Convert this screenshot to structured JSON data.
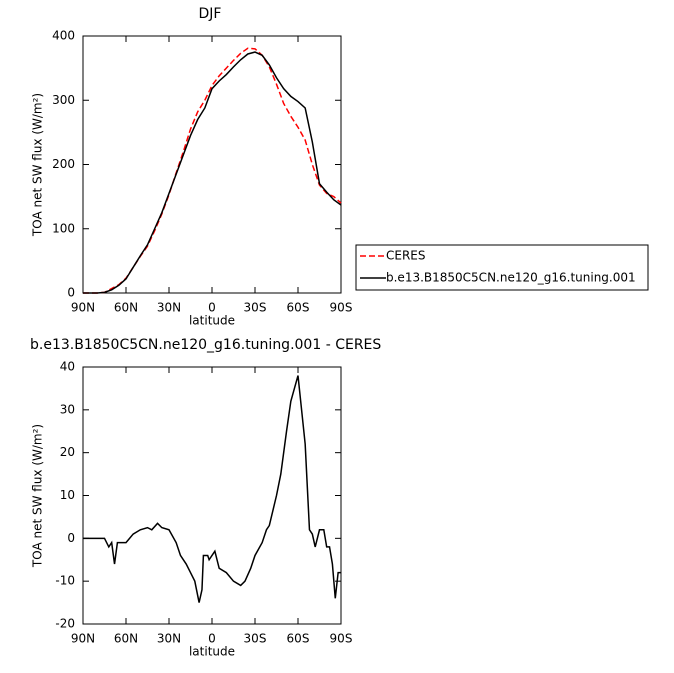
{
  "chart_data": [
    {
      "type": "line",
      "title": "DJF",
      "xlabel": "latitude",
      "ylabel": "TOA net SW flux (W/m²)",
      "x": [
        90,
        85,
        80,
        75,
        70,
        65,
        60,
        55,
        50,
        45,
        40,
        35,
        30,
        25,
        20,
        15,
        10,
        5,
        0,
        -5,
        -10,
        -15,
        -20,
        -25,
        -30,
        -35,
        -40,
        -45,
        -50,
        -55,
        -60,
        -65,
        -70,
        -75,
        -80,
        -85,
        -90
      ],
      "series": [
        {
          "name": "CERES",
          "color": "#ff0000",
          "dash": "dashed",
          "values": [
            0,
            0,
            0,
            1,
            7,
            13,
            23,
            40,
            57,
            73,
            97,
            123,
            153,
            187,
            220,
            255,
            282,
            300,
            323,
            338,
            350,
            362,
            373,
            381,
            380,
            370,
            352,
            325,
            295,
            275,
            258,
            238,
            200,
            168,
            155,
            150,
            140
          ]
        },
        {
          "name": "b.e13.B1850C5CN.ne120_g16.tuning.001",
          "color": "#000000",
          "dash": "solid",
          "values": [
            0,
            0,
            0,
            1,
            5,
            12,
            22,
            40,
            58,
            75,
            100,
            125,
            155,
            185,
            215,
            245,
            270,
            288,
            318,
            330,
            340,
            352,
            363,
            372,
            375,
            370,
            355,
            335,
            318,
            306,
            298,
            288,
            235,
            170,
            157,
            145,
            137
          ]
        }
      ],
      "xlim": [
        90,
        -90
      ],
      "xticks": [
        {
          "value": 90,
          "label": "90N"
        },
        {
          "value": 60,
          "label": "60N"
        },
        {
          "value": 30,
          "label": "30N"
        },
        0,
        {
          "value": -30,
          "label": "30S"
        },
        {
          "value": -60,
          "label": "60S"
        },
        {
          "value": -90,
          "label": "90S"
        }
      ],
      "ylim": [
        0,
        400
      ],
      "yticks": [
        0,
        100,
        200,
        300,
        400
      ],
      "legend": "right"
    },
    {
      "type": "line",
      "title": "b.e13.B1850C5CN.ne120_g16.tuning.001 - CERES",
      "xlabel": "latitude",
      "ylabel": "TOA net SW flux (W/m²)",
      "x": [
        90,
        80,
        75,
        72,
        70,
        68,
        66,
        60,
        55,
        50,
        45,
        42,
        38,
        35,
        30,
        25,
        22,
        18,
        15,
        12,
        9,
        7,
        6,
        3,
        2,
        0,
        -2,
        -5,
        -10,
        -15,
        -20,
        -23,
        -27,
        -30,
        -35,
        -38,
        -40,
        -45,
        -48,
        -52,
        -55,
        -60,
        -65,
        -68,
        -70,
        -72,
        -75,
        -78,
        -80,
        -82,
        -84,
        -86,
        -88,
        -90
      ],
      "series": [
        {
          "name": null,
          "color": "#000000",
          "dash": "solid",
          "values": [
            0,
            0,
            0,
            -2,
            -1,
            -6,
            -1,
            -1,
            1,
            2,
            2.5,
            2,
            3.5,
            2.5,
            2,
            -1,
            -4,
            -6,
            -8,
            -10,
            -15,
            -12,
            -4,
            -4,
            -5,
            -4,
            -3,
            -7,
            -8,
            -10,
            -11,
            -10,
            -7,
            -4,
            -1,
            2,
            3,
            10,
            15,
            25,
            32,
            38,
            22,
            2,
            1,
            -2,
            2,
            2,
            -2,
            -2,
            -6,
            -14,
            -8,
            -8
          ]
        }
      ],
      "xlim": [
        90,
        -90
      ],
      "xticks": [
        {
          "value": 90,
          "label": "90N"
        },
        {
          "value": 60,
          "label": "60N"
        },
        {
          "value": 30,
          "label": "30N"
        },
        0,
        {
          "value": -30,
          "label": "30S"
        },
        {
          "value": -60,
          "label": "60S"
        },
        {
          "value": -90,
          "label": "90S"
        }
      ],
      "ylim": [
        -20,
        40
      ],
      "yticks": [
        -20,
        -10,
        0,
        10,
        20,
        30,
        40
      ],
      "legend": null
    }
  ]
}
